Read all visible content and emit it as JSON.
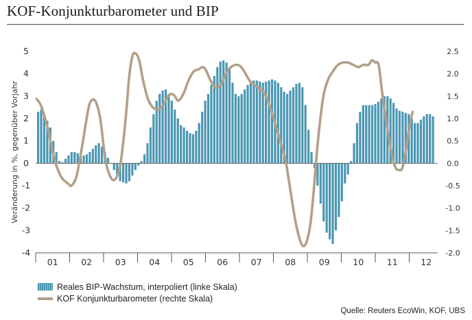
{
  "title": "KOF-Konjunkturbarometer und BIP",
  "source": "Quelle: Reuters EcoWin, KOF, UBS",
  "chart_data": {
    "type": "bar+line",
    "ylabel": "Veränderung in %, gegenüber Vorjahr",
    "left_axis": {
      "min": -4,
      "max": 5,
      "ticks": [
        "5",
        "4",
        "3",
        "2",
        "1",
        "0",
        "-1",
        "-2",
        "-3",
        "-4"
      ]
    },
    "right_axis": {
      "min": -2.0,
      "max": 2.5,
      "ticks": [
        "2.5",
        "2.0",
        "1.5",
        "1.0",
        "0.5",
        "0.0",
        "-0.5",
        "-1.0",
        "-1.5",
        "-2.0"
      ]
    },
    "x_tick_labels": [
      "01",
      "02",
      "03",
      "04",
      "05",
      "06",
      "07",
      "08",
      "09",
      "10",
      "11",
      "12"
    ],
    "x_start": 2001.0,
    "series": [
      {
        "name": "Reales BIP-Wachstum, interpoliert (linke Skala)",
        "kind": "bar",
        "axis": "left",
        "color": "#4a96b2",
        "values": [
          2.3,
          2.4,
          2.2,
          1.9,
          1.6,
          1.0,
          0.5,
          0.1,
          0.05,
          0.2,
          0.35,
          0.5,
          0.5,
          0.45,
          0.4,
          0.35,
          0.4,
          0.5,
          0.65,
          0.8,
          0.9,
          0.75,
          0.5,
          0.25,
          0.0,
          -0.3,
          -0.6,
          -0.8,
          -0.85,
          -0.9,
          -0.8,
          -0.55,
          -0.3,
          -0.1,
          0.1,
          0.4,
          0.9,
          1.6,
          2.2,
          2.8,
          3.1,
          3.25,
          3.3,
          3.1,
          2.8,
          2.4,
          2.0,
          1.7,
          1.6,
          1.45,
          1.35,
          1.3,
          1.45,
          1.8,
          2.3,
          2.8,
          3.1,
          3.5,
          3.9,
          4.3,
          4.55,
          4.6,
          4.5,
          4.2,
          3.6,
          3.1,
          3.0,
          3.1,
          3.3,
          3.5,
          3.65,
          3.7,
          3.7,
          3.65,
          3.6,
          3.65,
          3.7,
          3.75,
          3.7,
          3.6,
          3.4,
          3.2,
          3.1,
          3.25,
          3.4,
          3.55,
          3.6,
          3.4,
          2.6,
          1.5,
          0.5,
          -0.2,
          -1.0,
          -1.8,
          -2.6,
          -3.1,
          -3.4,
          -3.6,
          -3.0,
          -2.4,
          -1.7,
          -0.9,
          -0.5,
          0.1,
          0.9,
          1.8,
          2.3,
          2.6,
          2.6,
          2.6,
          2.6,
          2.65,
          2.75,
          2.9,
          3.0,
          3.0,
          2.9,
          2.7,
          2.45,
          2.35,
          2.3,
          2.25,
          2.2,
          2.0,
          1.8,
          1.8,
          1.95,
          2.1,
          2.2,
          2.2,
          2.1
        ]
      },
      {
        "name": "KOF Konjunkturbarometer (rechte Skala)",
        "kind": "line",
        "axis": "right",
        "color": "#b39f8a",
        "points": [
          [
            2001.0,
            1.45
          ],
          [
            2001.15,
            1.3
          ],
          [
            2001.35,
            0.8
          ],
          [
            2001.55,
            0.1
          ],
          [
            2001.75,
            -0.3
          ],
          [
            2001.95,
            -0.45
          ],
          [
            2002.05,
            -0.5
          ],
          [
            2002.2,
            -0.3
          ],
          [
            2002.35,
            0.3
          ],
          [
            2002.5,
            1.0
          ],
          [
            2002.6,
            1.35
          ],
          [
            2002.75,
            1.4
          ],
          [
            2002.9,
            1.0
          ],
          [
            2003.05,
            0.1
          ],
          [
            2003.2,
            -0.3
          ],
          [
            2003.35,
            -0.35
          ],
          [
            2003.5,
            0.0
          ],
          [
            2003.65,
            1.0
          ],
          [
            2003.75,
            1.9
          ],
          [
            2003.85,
            2.4
          ],
          [
            2003.95,
            2.45
          ],
          [
            2004.05,
            2.3
          ],
          [
            2004.15,
            1.9
          ],
          [
            2004.3,
            1.45
          ],
          [
            2004.45,
            1.25
          ],
          [
            2004.6,
            1.2
          ],
          [
            2004.75,
            1.3
          ],
          [
            2004.9,
            1.5
          ],
          [
            2005.0,
            1.55
          ],
          [
            2005.1,
            1.5
          ],
          [
            2005.2,
            1.4
          ],
          [
            2005.35,
            1.55
          ],
          [
            2005.5,
            1.85
          ],
          [
            2005.65,
            2.05
          ],
          [
            2005.8,
            2.1
          ],
          [
            2005.9,
            2.15
          ],
          [
            2006.0,
            2.1
          ],
          [
            2006.15,
            1.85
          ],
          [
            2006.3,
            1.7
          ],
          [
            2006.45,
            1.75
          ],
          [
            2006.6,
            2.0
          ],
          [
            2006.75,
            2.15
          ],
          [
            2006.95,
            2.2
          ],
          [
            2007.1,
            2.1
          ],
          [
            2007.3,
            1.85
          ],
          [
            2007.45,
            1.75
          ],
          [
            2007.6,
            1.65
          ],
          [
            2007.75,
            1.55
          ],
          [
            2007.9,
            1.25
          ],
          [
            2008.05,
            0.9
          ],
          [
            2008.2,
            0.5
          ],
          [
            2008.35,
            0.1
          ],
          [
            2008.5,
            -0.6
          ],
          [
            2008.65,
            -1.3
          ],
          [
            2008.8,
            -1.75
          ],
          [
            2008.9,
            -1.85
          ],
          [
            2009.0,
            -1.7
          ],
          [
            2009.1,
            -1.3
          ],
          [
            2009.2,
            -0.5
          ],
          [
            2009.3,
            0.4
          ],
          [
            2009.45,
            1.4
          ],
          [
            2009.6,
            1.85
          ],
          [
            2009.75,
            2.05
          ],
          [
            2009.9,
            2.2
          ],
          [
            2010.05,
            2.25
          ],
          [
            2010.2,
            2.25
          ],
          [
            2010.35,
            2.2
          ],
          [
            2010.5,
            2.15
          ],
          [
            2010.65,
            2.2
          ],
          [
            2010.8,
            2.2
          ],
          [
            2010.9,
            2.3
          ],
          [
            2011.0,
            2.25
          ],
          [
            2011.1,
            2.2
          ],
          [
            2011.2,
            1.6
          ],
          [
            2011.35,
            0.8
          ],
          [
            2011.5,
            0.15
          ],
          [
            2011.6,
            -0.1
          ],
          [
            2011.7,
            -0.15
          ],
          [
            2011.8,
            -0.1
          ],
          [
            2011.9,
            0.3
          ],
          [
            2012.0,
            0.8
          ],
          [
            2012.1,
            1.15
          ]
        ]
      }
    ]
  }
}
